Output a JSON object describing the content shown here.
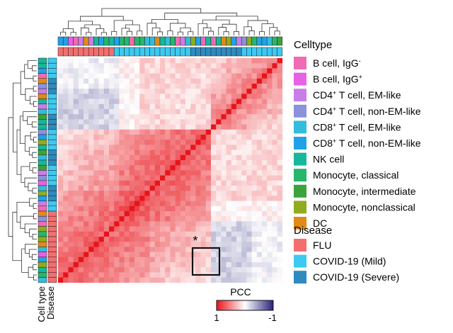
{
  "chart_data": {
    "type": "heatmap",
    "matrix_size": 44,
    "rows_labelled": false,
    "clustering": {
      "row_dendrogram": true,
      "column_dendrogram": true
    },
    "annotation_tracks": [
      {
        "name": "Cell type",
        "label": "Cell type"
      },
      {
        "name": "Disease",
        "label": "Disease"
      }
    ],
    "colorbar": {
      "title": "PCC",
      "min_label": "1",
      "max_label": "-1",
      "colors": [
        "#e8141b",
        "#ffffff",
        "#27237b"
      ]
    },
    "legend": {
      "celltype": {
        "title": "Celltype",
        "items": [
          {
            "label": "B cell, IgG",
            "sup": "-",
            "color": "#f06bb4"
          },
          {
            "label": "B cell, IgG",
            "sup": "+",
            "color": "#e661e8"
          },
          {
            "label": "CD4 T cell, EM-like",
            "sup": "+",
            "after_sup": " T cell, EM-like",
            "pre": "CD4",
            "color": "#c87ee8"
          },
          {
            "label": "CD4 T cell, non-EM-like",
            "sup": "+",
            "after_sup": " T cell, non-EM-like",
            "pre": "CD4",
            "color": "#8b92dc"
          },
          {
            "label": "CD8 T cell, EM-like",
            "sup": "+",
            "after_sup": " T cell, EM-like",
            "pre": "CD8",
            "color": "#33bcdc"
          },
          {
            "label": "CD8 T cell, non-EM-like",
            "sup": "+",
            "after_sup": " T cell, non-EM-like",
            "pre": "CD8",
            "color": "#1fa3e8"
          },
          {
            "label": "NK cell",
            "color": "#16b79a"
          },
          {
            "label": "Monocyte, classical",
            "color": "#27b66b"
          },
          {
            "label": "Monocyte, intermediate",
            "color": "#3aa33a"
          },
          {
            "label": "Monocyte, nonclassical",
            "color": "#8fac1e"
          },
          {
            "label": "DC",
            "color": "#e28a18"
          }
        ]
      },
      "disease": {
        "title": "Disease",
        "items": [
          {
            "label": "FLU",
            "color": "#f36f6f"
          },
          {
            "label": "COVID-19 (Mild)",
            "color": "#3ccaf2"
          },
          {
            "label": "COVID-19 (Severe)",
            "color": "#2e8bbf"
          }
        ]
      }
    },
    "annotation": {
      "marker": "*",
      "note": "boxed block"
    }
  }
}
